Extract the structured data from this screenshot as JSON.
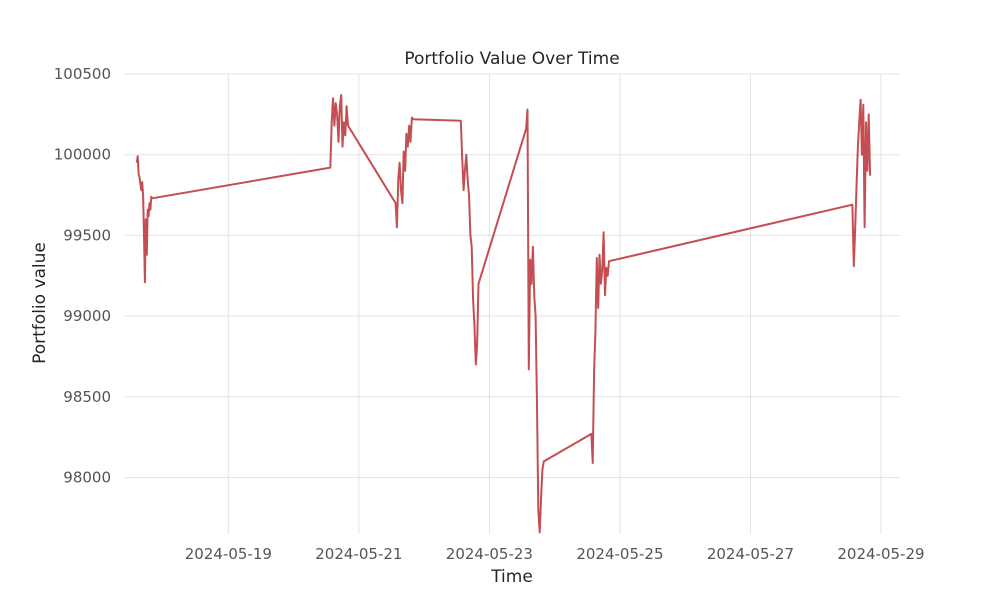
{
  "chart_data": {
    "type": "line",
    "title": "Portfolio Value Over Time",
    "xlabel": "Time",
    "ylabel": "Portfolio value",
    "grid": true,
    "xlim": [
      "2024-05-17T10:00",
      "2024-05-29T07:00"
    ],
    "ylim": [
      97650,
      100500
    ],
    "x_ticks": [
      "2024-05-19",
      "2024-05-21",
      "2024-05-23",
      "2024-05-25",
      "2024-05-27",
      "2024-05-29"
    ],
    "y_ticks": [
      98000,
      98500,
      99000,
      99500,
      100000,
      100500
    ],
    "colors": {
      "line": "#c44e52",
      "grid": "#e3e3e3",
      "text": "#262626",
      "tick": "#555555"
    },
    "series": [
      {
        "x": [
          "2024-05-17T14:20",
          "2024-05-17T14:40",
          "2024-05-17T15:00",
          "2024-05-17T15:20",
          "2024-05-17T15:40",
          "2024-05-17T16:00",
          "2024-05-17T16:20",
          "2024-05-17T16:40",
          "2024-05-17T17:00",
          "2024-05-17T17:20",
          "2024-05-17T17:40",
          "2024-05-17T18:00",
          "2024-05-17T18:20",
          "2024-05-17T18:40",
          "2024-05-17T19:00",
          "2024-05-17T19:20",
          "2024-05-17T19:40",
          "2024-05-17T20:00",
          "2024-05-20T13:30",
          "2024-05-20T14:00",
          "2024-05-20T14:30",
          "2024-05-20T15:00",
          "2024-05-20T15:30",
          "2024-05-20T16:00",
          "2024-05-20T16:30",
          "2024-05-20T17:00",
          "2024-05-20T17:30",
          "2024-05-20T18:00",
          "2024-05-20T18:30",
          "2024-05-20T19:00",
          "2024-05-20T19:30",
          "2024-05-20T20:00",
          "2024-05-21T13:30",
          "2024-05-21T14:00",
          "2024-05-21T14:30",
          "2024-05-21T15:00",
          "2024-05-21T15:30",
          "2024-05-21T16:00",
          "2024-05-21T16:30",
          "2024-05-21T17:00",
          "2024-05-21T17:30",
          "2024-05-21T18:00",
          "2024-05-21T18:30",
          "2024-05-21T19:00",
          "2024-05-21T19:30",
          "2024-05-21T20:00",
          "2024-05-22T13:30",
          "2024-05-22T14:00",
          "2024-05-22T14:30",
          "2024-05-22T15:00",
          "2024-05-22T15:30",
          "2024-05-22T16:00",
          "2024-05-22T16:30",
          "2024-05-22T17:00",
          "2024-05-22T17:30",
          "2024-05-22T18:00",
          "2024-05-22T18:30",
          "2024-05-22T19:00",
          "2024-05-22T19:30",
          "2024-05-22T20:00",
          "2024-05-23T13:30",
          "2024-05-23T14:00",
          "2024-05-23T14:30",
          "2024-05-23T15:00",
          "2024-05-23T15:30",
          "2024-05-23T16:00",
          "2024-05-23T16:30",
          "2024-05-23T17:00",
          "2024-05-23T17:30",
          "2024-05-23T18:00",
          "2024-05-23T18:30",
          "2024-05-23T19:00",
          "2024-05-23T19:30",
          "2024-05-23T20:00",
          "2024-05-24T13:30",
          "2024-05-24T14:00",
          "2024-05-24T14:30",
          "2024-05-24T15:00",
          "2024-05-24T15:30",
          "2024-05-24T16:00",
          "2024-05-24T16:30",
          "2024-05-24T17:00",
          "2024-05-24T17:30",
          "2024-05-24T18:00",
          "2024-05-24T18:30",
          "2024-05-24T19:00",
          "2024-05-24T19:30",
          "2024-05-24T20:00",
          "2024-05-28T13:30",
          "2024-05-28T14:00",
          "2024-05-28T14:30",
          "2024-05-28T15:00",
          "2024-05-28T15:30",
          "2024-05-28T16:00",
          "2024-05-28T16:30",
          "2024-05-28T17:00",
          "2024-05-28T17:30",
          "2024-05-28T18:00",
          "2024-05-28T18:30",
          "2024-05-28T19:00",
          "2024-05-28T19:30",
          "2024-05-28T20:00"
        ],
        "values": [
          99950,
          99990,
          99880,
          99860,
          99820,
          99780,
          99830,
          99750,
          99500,
          99210,
          99600,
          99380,
          99660,
          99620,
          99700,
          99660,
          99740,
          99730,
          99920,
          100200,
          100350,
          100180,
          100320,
          100250,
          100080,
          100300,
          100370,
          100050,
          100200,
          100120,
          100300,
          100180,
          99700,
          99550,
          99850,
          99950,
          99780,
          99700,
          100020,
          99900,
          100130,
          100050,
          100180,
          100080,
          100230,
          100220,
          100210,
          99980,
          99780,
          99900,
          100000,
          99850,
          99750,
          99500,
          99430,
          99100,
          98950,
          98700,
          98820,
          99200,
          100160,
          100280,
          98670,
          99350,
          99200,
          99430,
          99120,
          99000,
          98450,
          97800,
          97660,
          97880,
          98050,
          98100,
          98270,
          98090,
          98660,
          98900,
          99360,
          99050,
          99380,
          99200,
          99280,
          99520,
          99130,
          99300,
          99250,
          99340,
          99690,
          99310,
          99530,
          99800,
          100050,
          100200,
          100340,
          100000,
          100310,
          99550,
          100200,
          99900,
          100250,
          99870
        ]
      }
    ]
  }
}
